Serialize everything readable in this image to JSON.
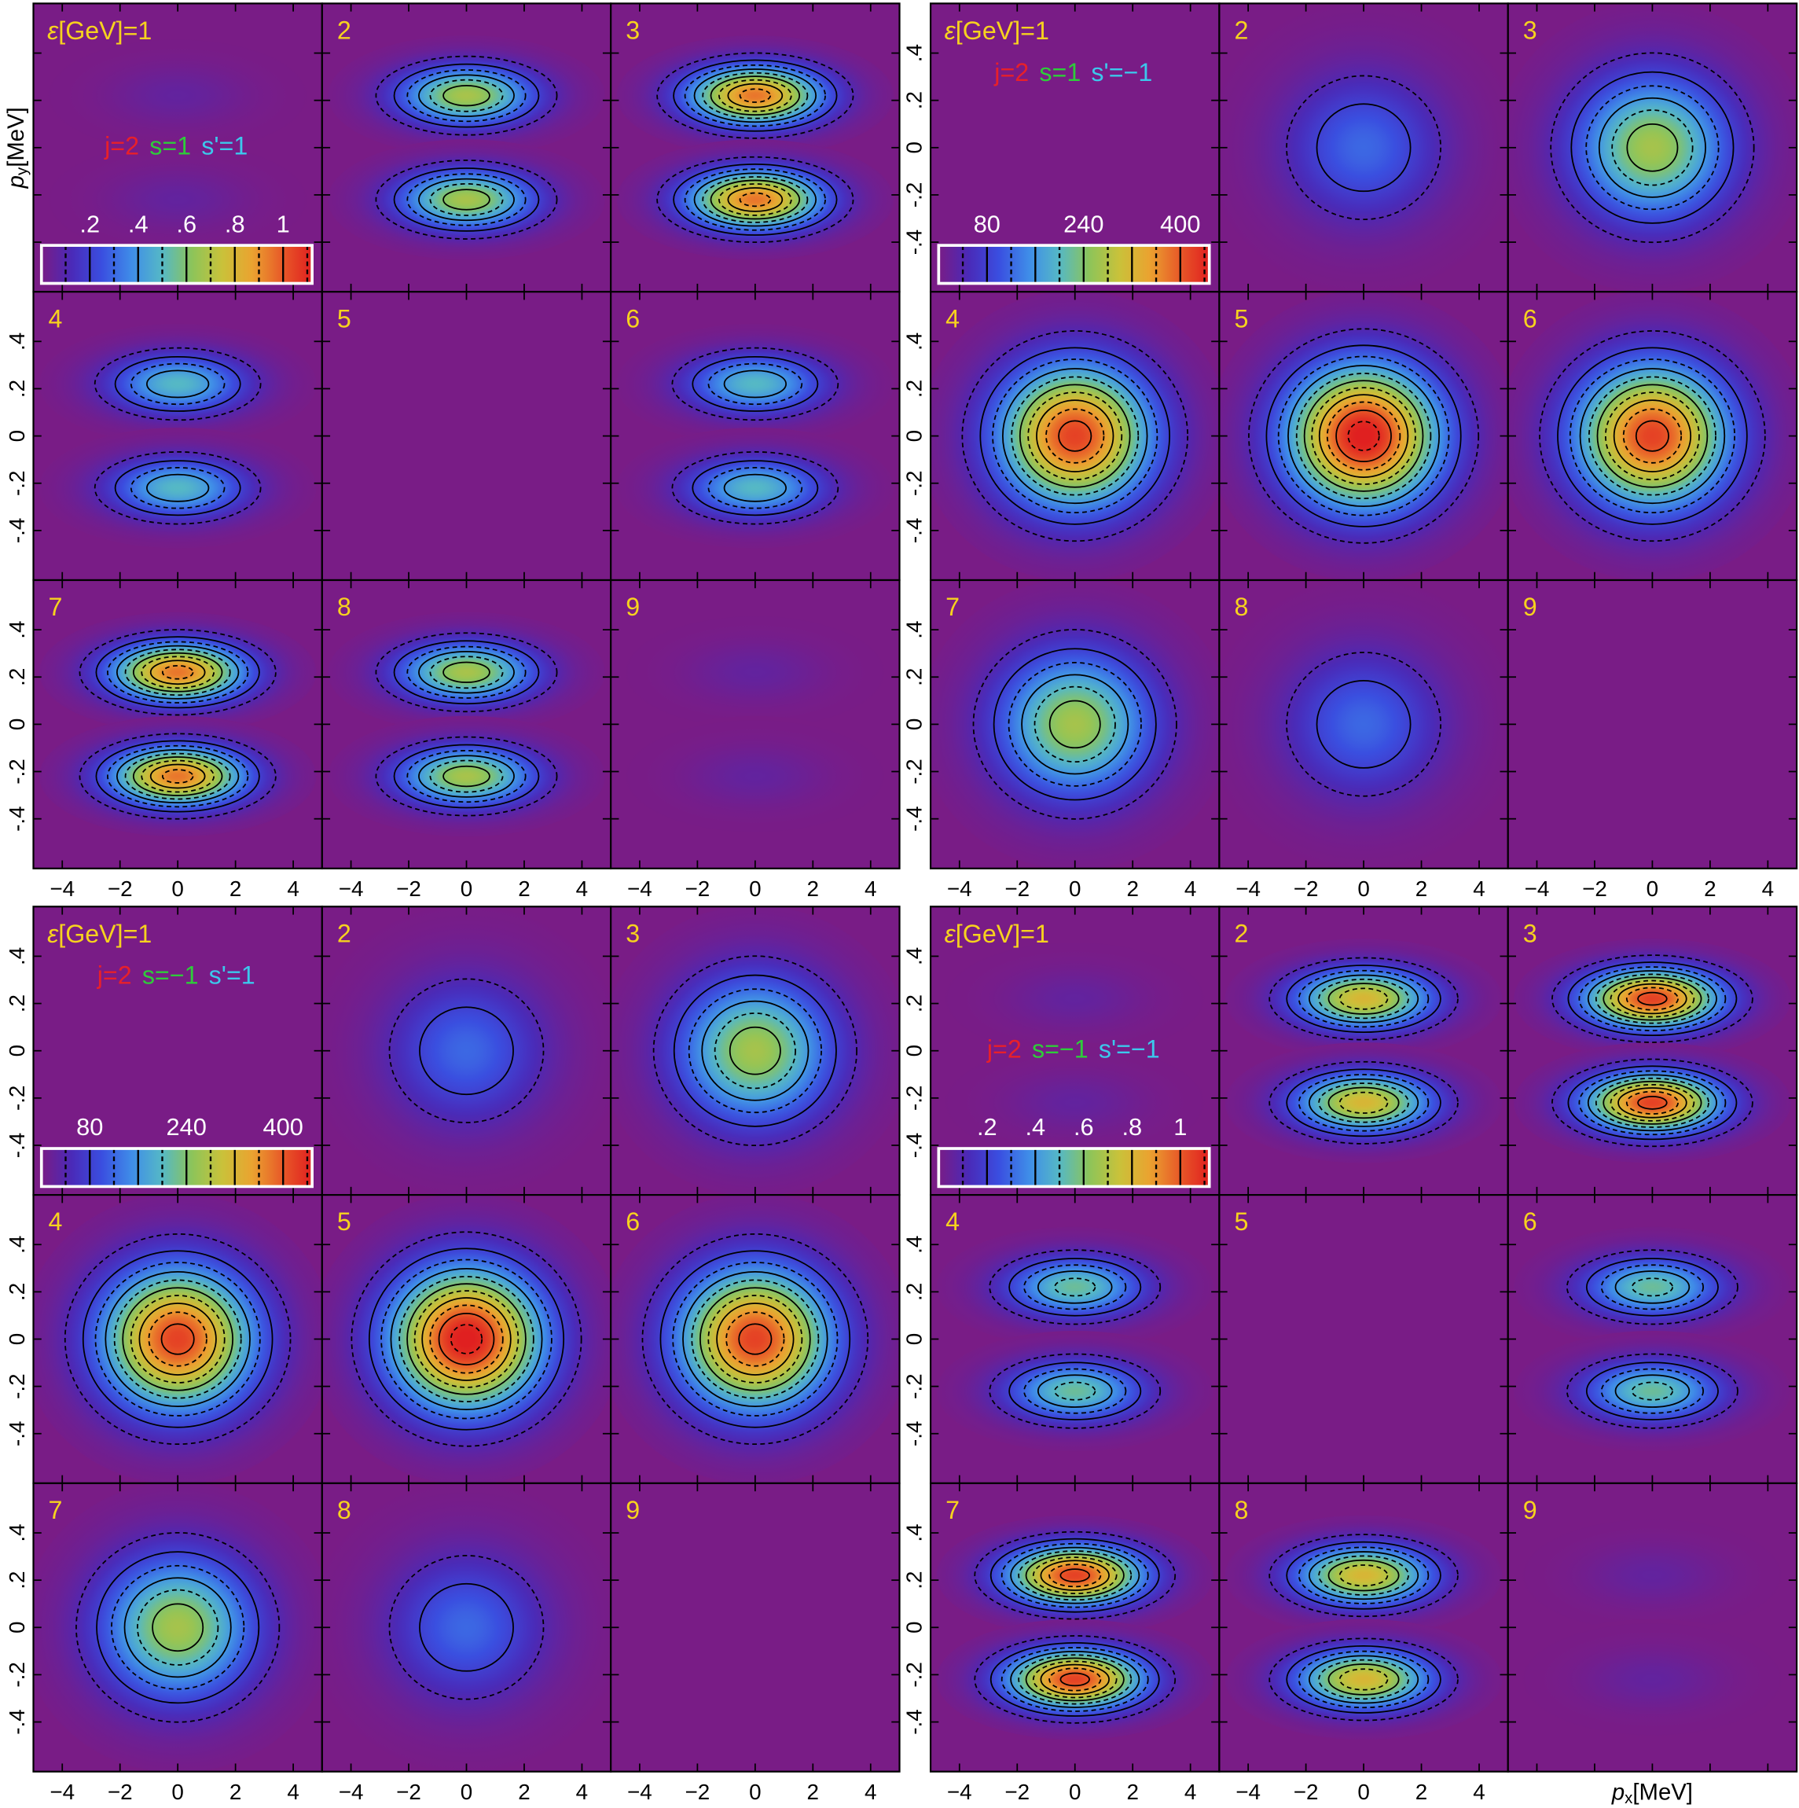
{
  "chart_data": [
    {
      "type": "heatmap",
      "energy_prefix": [
        "ε",
        "[GeV]="
      ],
      "quantum_labels": [
        {
          "text": "j=2",
          "color": "#e8202a"
        },
        {
          "text": "s=1",
          "color": "#2ecc3a"
        },
        {
          "text": "s'=1",
          "color": "#3cc8ec"
        }
      ],
      "y_label": [
        "p",
        "y",
        "[MeV]"
      ],
      "xlim": [
        -5,
        5
      ],
      "ylim": [
        -0.61,
        0.61
      ],
      "xticks": [
        {
          "value": -4,
          "label": "−4"
        },
        {
          "value": -2,
          "label": "−2"
        },
        0,
        2,
        4
      ],
      "yticks": [
        {
          "value": -0.4,
          "label": "-.4"
        },
        {
          "value": -0.2,
          "label": "-.2"
        },
        0,
        {
          "value": 0.2,
          "label": ".2"
        },
        {
          "value": 0.4,
          "label": ".4"
        }
      ],
      "colormap": [
        "#791c86",
        "#4a2ab8",
        "#3a4ee0",
        "#3f8de8",
        "#55b8c6",
        "#8cc45a",
        "#c9c23a",
        "#eaa330",
        "#e85a28",
        "#e02020"
      ],
      "colorbar": {
        "clim": [
          0,
          1.12
        ],
        "ticks": [
          {
            "value": 0.2,
            "label": ".2"
          },
          {
            "value": 0.4,
            "label": ".4"
          },
          {
            "value": 0.6,
            "label": ".6"
          },
          {
            "value": 0.8,
            "label": ".8"
          },
          1
        ],
        "levels": [
          0.1,
          0.2,
          0.3,
          0.4,
          0.5,
          0.6,
          0.7,
          0.8,
          0.9,
          1.0,
          1.1
        ]
      },
      "panels": [
        {
          "label": 1,
          "peaks": [
            {
              "x": 0,
              "y": 0.22,
              "value": 0.06
            },
            {
              "x": 0,
              "y": -0.22,
              "value": 0.06
            }
          ]
        },
        {
          "label": 2,
          "peaks": [
            {
              "x": 0,
              "y": 0.22,
              "value": 0.68
            },
            {
              "x": 0,
              "y": -0.22,
              "value": 0.68
            }
          ]
        },
        {
          "label": 3,
          "peaks": [
            {
              "x": 0,
              "y": 0.22,
              "value": 0.95
            },
            {
              "x": 0,
              "y": -0.22,
              "value": 0.95
            }
          ]
        },
        {
          "label": 4,
          "peaks": [
            {
              "x": 0,
              "y": 0.22,
              "value": 0.5
            },
            {
              "x": 0,
              "y": -0.22,
              "value": 0.5
            }
          ]
        },
        {
          "label": 5,
          "peaks": []
        },
        {
          "label": 6,
          "peaks": [
            {
              "x": 0,
              "y": 0.22,
              "value": 0.5
            },
            {
              "x": 0,
              "y": -0.22,
              "value": 0.5
            }
          ]
        },
        {
          "label": 7,
          "peaks": [
            {
              "x": 0,
              "y": 0.22,
              "value": 0.95
            },
            {
              "x": 0,
              "y": -0.22,
              "value": 0.95
            }
          ]
        },
        {
          "label": 8,
          "peaks": [
            {
              "x": 0,
              "y": 0.22,
              "value": 0.68
            },
            {
              "x": 0,
              "y": -0.22,
              "value": 0.68
            }
          ]
        },
        {
          "label": 9,
          "peaks": [
            {
              "x": 0,
              "y": 0.22,
              "value": 0.06
            },
            {
              "x": 0,
              "y": -0.22,
              "value": 0.06
            }
          ]
        }
      ]
    },
    {
      "type": "heatmap",
      "energy_prefix": [
        "ε",
        "[GeV]="
      ],
      "quantum_labels": [
        {
          "text": "j=2",
          "color": "#e8202a"
        },
        {
          "text": "s=1",
          "color": "#2ecc3a"
        },
        {
          "text": "s'=−1",
          "color": "#3cc8ec"
        }
      ],
      "xlim": [
        -5,
        5
      ],
      "ylim": [
        -0.61,
        0.61
      ],
      "xticks": [
        {
          "value": -4,
          "label": "−4"
        },
        {
          "value": -2,
          "label": "−2"
        },
        0,
        2,
        4
      ],
      "yticks": [
        {
          "value": -0.4,
          "label": "-.4"
        },
        {
          "value": -0.2,
          "label": "-.2"
        },
        0,
        {
          "value": 0.2,
          "label": ".2"
        },
        {
          "value": 0.4,
          "label": ".4"
        }
      ],
      "colormap": [
        "#791c86",
        "#4a2ab8",
        "#3a4ee0",
        "#3f8de8",
        "#55b8c6",
        "#8cc45a",
        "#c9c23a",
        "#eaa330",
        "#e85a28",
        "#e02020"
      ],
      "colorbar": {
        "clim": [
          0,
          448
        ],
        "ticks": [
          80,
          240,
          400
        ],
        "levels": [
          40,
          80,
          120,
          160,
          200,
          240,
          280,
          320,
          360,
          400,
          440
        ]
      },
      "panels": [
        {
          "label": 1,
          "peaks": []
        },
        {
          "label": 2,
          "peaks": [
            {
              "x": 0,
              "y": 0,
              "value": 120
            }
          ]
        },
        {
          "label": 3,
          "peaks": [
            {
              "x": 0,
              "y": 0,
              "value": 270
            }
          ]
        },
        {
          "label": 4,
          "peaks": [
            {
              "x": 0,
              "y": 0,
              "value": 420
            }
          ]
        },
        {
          "label": 5,
          "peaks": [
            {
              "x": 0,
              "y": 0,
              "value": 460
            }
          ]
        },
        {
          "label": 6,
          "peaks": [
            {
              "x": 0,
              "y": 0,
              "value": 420
            }
          ]
        },
        {
          "label": 7,
          "peaks": [
            {
              "x": 0,
              "y": 0,
              "value": 270
            }
          ]
        },
        {
          "label": 8,
          "peaks": [
            {
              "x": 0,
              "y": 0,
              "value": 120
            }
          ]
        },
        {
          "label": 9,
          "peaks": []
        }
      ]
    },
    {
      "type": "heatmap",
      "energy_prefix": [
        "ε",
        "[GeV]="
      ],
      "quantum_labels": [
        {
          "text": "j=2",
          "color": "#e8202a"
        },
        {
          "text": "s=−1",
          "color": "#2ecc3a"
        },
        {
          "text": "s'=1",
          "color": "#3cc8ec"
        }
      ],
      "xlim": [
        -5,
        5
      ],
      "ylim": [
        -0.61,
        0.61
      ],
      "xticks": [
        {
          "value": -4,
          "label": "−4"
        },
        {
          "value": -2,
          "label": "−2"
        },
        0,
        2,
        4
      ],
      "yticks": [
        {
          "value": -0.4,
          "label": "-.4"
        },
        {
          "value": -0.2,
          "label": "-.2"
        },
        0,
        {
          "value": 0.2,
          "label": ".2"
        },
        {
          "value": 0.4,
          "label": ".4"
        }
      ],
      "colormap": [
        "#791c86",
        "#4a2ab8",
        "#3a4ee0",
        "#3f8de8",
        "#55b8c6",
        "#8cc45a",
        "#c9c23a",
        "#eaa330",
        "#e85a28",
        "#e02020"
      ],
      "colorbar": {
        "clim": [
          0,
          448
        ],
        "ticks": [
          80,
          240,
          400
        ],
        "levels": [
          40,
          80,
          120,
          160,
          200,
          240,
          280,
          320,
          360,
          400,
          440
        ]
      },
      "panels": [
        {
          "label": 1,
          "peaks": []
        },
        {
          "label": 2,
          "peaks": [
            {
              "x": 0,
              "y": 0,
              "value": 120
            }
          ]
        },
        {
          "label": 3,
          "peaks": [
            {
              "x": 0,
              "y": 0,
              "value": 270
            }
          ]
        },
        {
          "label": 4,
          "peaks": [
            {
              "x": 0,
              "y": 0,
              "value": 420
            }
          ]
        },
        {
          "label": 5,
          "peaks": [
            {
              "x": 0,
              "y": 0,
              "value": 460
            }
          ]
        },
        {
          "label": 6,
          "peaks": [
            {
              "x": 0,
              "y": 0,
              "value": 420
            }
          ]
        },
        {
          "label": 7,
          "peaks": [
            {
              "x": 0,
              "y": 0,
              "value": 270
            }
          ]
        },
        {
          "label": 8,
          "peaks": [
            {
              "x": 0,
              "y": 0,
              "value": 120
            }
          ]
        },
        {
          "label": 9,
          "peaks": []
        }
      ]
    },
    {
      "type": "heatmap",
      "energy_prefix": [
        "ε",
        "[GeV]="
      ],
      "quantum_labels": [
        {
          "text": "j=2",
          "color": "#e8202a"
        },
        {
          "text": "s=−1",
          "color": "#2ecc3a"
        },
        {
          "text": "s'=−1",
          "color": "#3cc8ec"
        }
      ],
      "x_label": [
        "p",
        "x",
        "[MeV]"
      ],
      "xlim": [
        -5,
        5
      ],
      "ylim": [
        -0.61,
        0.61
      ],
      "xticks": [
        {
          "value": -4,
          "label": "−4"
        },
        {
          "value": -2,
          "label": "−2"
        },
        0,
        2,
        4
      ],
      "yticks": [
        {
          "value": -0.4,
          "label": "-.4"
        },
        {
          "value": -0.2,
          "label": "-.2"
        },
        0,
        {
          "value": 0.2,
          "label": ".2"
        },
        {
          "value": 0.4,
          "label": ".4"
        }
      ],
      "colormap": [
        "#791c86",
        "#4a2ab8",
        "#3a4ee0",
        "#3f8de8",
        "#55b8c6",
        "#8cc45a",
        "#c9c23a",
        "#eaa330",
        "#e85a28",
        "#e02020"
      ],
      "colorbar": {
        "clim": [
          0,
          1.12
        ],
        "ticks": [
          {
            "value": 0.2,
            "label": ".2"
          },
          {
            "value": 0.4,
            "label": ".4"
          },
          {
            "value": 0.6,
            "label": ".6"
          },
          {
            "value": 0.8,
            "label": ".8"
          },
          1
        ],
        "levels": [
          0.1,
          0.2,
          0.3,
          0.4,
          0.5,
          0.6,
          0.7,
          0.8,
          0.9,
          1.0,
          1.1
        ]
      },
      "panels": [
        {
          "label": 1,
          "peaks": [
            {
              "x": 0,
              "y": 0.22,
              "value": 0.06
            },
            {
              "x": 0,
              "y": -0.22,
              "value": 0.06
            }
          ]
        },
        {
          "label": 2,
          "peaks": [
            {
              "x": 0,
              "y": 0.22,
              "value": 0.8
            },
            {
              "x": 0,
              "y": -0.22,
              "value": 0.8
            }
          ]
        },
        {
          "label": 3,
          "peaks": [
            {
              "x": 0,
              "y": 0.22,
              "value": 1.05
            },
            {
              "x": 0,
              "y": -0.22,
              "value": 1.05
            }
          ]
        },
        {
          "label": 4,
          "peaks": [
            {
              "x": 0,
              "y": 0.22,
              "value": 0.55
            },
            {
              "x": 0,
              "y": -0.22,
              "value": 0.55
            }
          ]
        },
        {
          "label": 5,
          "peaks": []
        },
        {
          "label": 6,
          "peaks": [
            {
              "x": 0,
              "y": 0.22,
              "value": 0.55
            },
            {
              "x": 0,
              "y": -0.22,
              "value": 0.55
            }
          ]
        },
        {
          "label": 7,
          "peaks": [
            {
              "x": 0,
              "y": 0.22,
              "value": 1.05
            },
            {
              "x": 0,
              "y": -0.22,
              "value": 1.05
            }
          ]
        },
        {
          "label": 8,
          "peaks": [
            {
              "x": 0,
              "y": 0.22,
              "value": 0.8
            },
            {
              "x": 0,
              "y": -0.22,
              "value": 0.8
            }
          ]
        },
        {
          "label": 9,
          "peaks": [
            {
              "x": 0,
              "y": 0.22,
              "value": 0.06
            },
            {
              "x": 0,
              "y": -0.22,
              "value": 0.06
            }
          ]
        }
      ]
    }
  ]
}
